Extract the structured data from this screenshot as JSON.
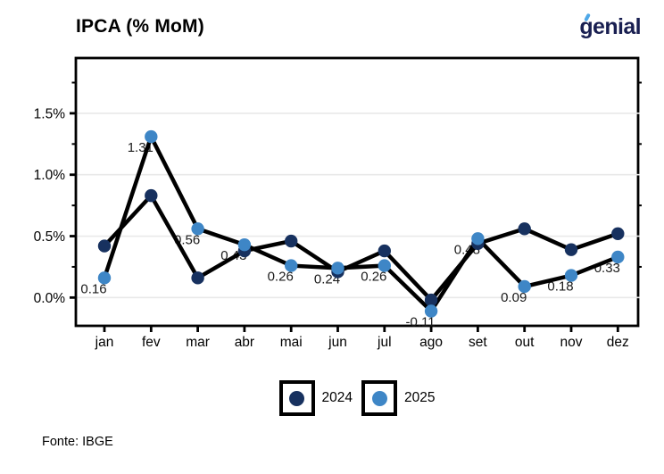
{
  "header": {
    "title": "IPCA (% MoM)"
  },
  "logo": {
    "text": "genial",
    "text_color": "#191F51",
    "accent_color": "#4FA8E8"
  },
  "chart_data": {
    "type": "line",
    "title": "IPCA (% MoM)",
    "categories": [
      "jan",
      "fev",
      "mar",
      "abr",
      "mai",
      "jun",
      "jul",
      "ago",
      "set",
      "out",
      "nov",
      "dez"
    ],
    "series": [
      {
        "name": "2024",
        "marker_color": "#17315F",
        "values": [
          0.42,
          0.83,
          0.16,
          0.38,
          0.46,
          0.21,
          0.38,
          -0.02,
          0.44,
          0.56,
          0.39,
          0.52
        ]
      },
      {
        "name": "2025",
        "marker_color": "#3E86C6",
        "values": [
          0.16,
          1.31,
          0.56,
          0.43,
          0.26,
          0.24,
          0.26,
          -0.11,
          0.48,
          0.09,
          0.18,
          0.33
        ],
        "data_labels": [
          "0.16",
          "1.31",
          "0.56",
          "0.43",
          "0.26",
          "0.24",
          "0.26",
          "-0.11",
          "0.48",
          "0.09",
          "0.18",
          "0.33"
        ]
      }
    ],
    "line_color": "#000000",
    "grid": "horizontal-major",
    "grid_color": "#E9E9E9",
    "ylim": [
      -0.23,
      1.95
    ],
    "yticks": [
      {
        "value": 0.0,
        "label": "0.0%"
      },
      {
        "value": 0.5,
        "label": "0.5%"
      },
      {
        "value": 1.0,
        "label": "1.0%"
      },
      {
        "value": 1.5,
        "label": "1.5%"
      }
    ],
    "y_minor_ticks": [
      0.25,
      0.75,
      1.25,
      1.75
    ],
    "legend_position": "bottom"
  },
  "legend": {
    "items": [
      {
        "label": "2024",
        "color": "#17315F"
      },
      {
        "label": "2025",
        "color": "#3E86C6"
      }
    ]
  },
  "footer": {
    "source": "Fonte: IBGE"
  }
}
